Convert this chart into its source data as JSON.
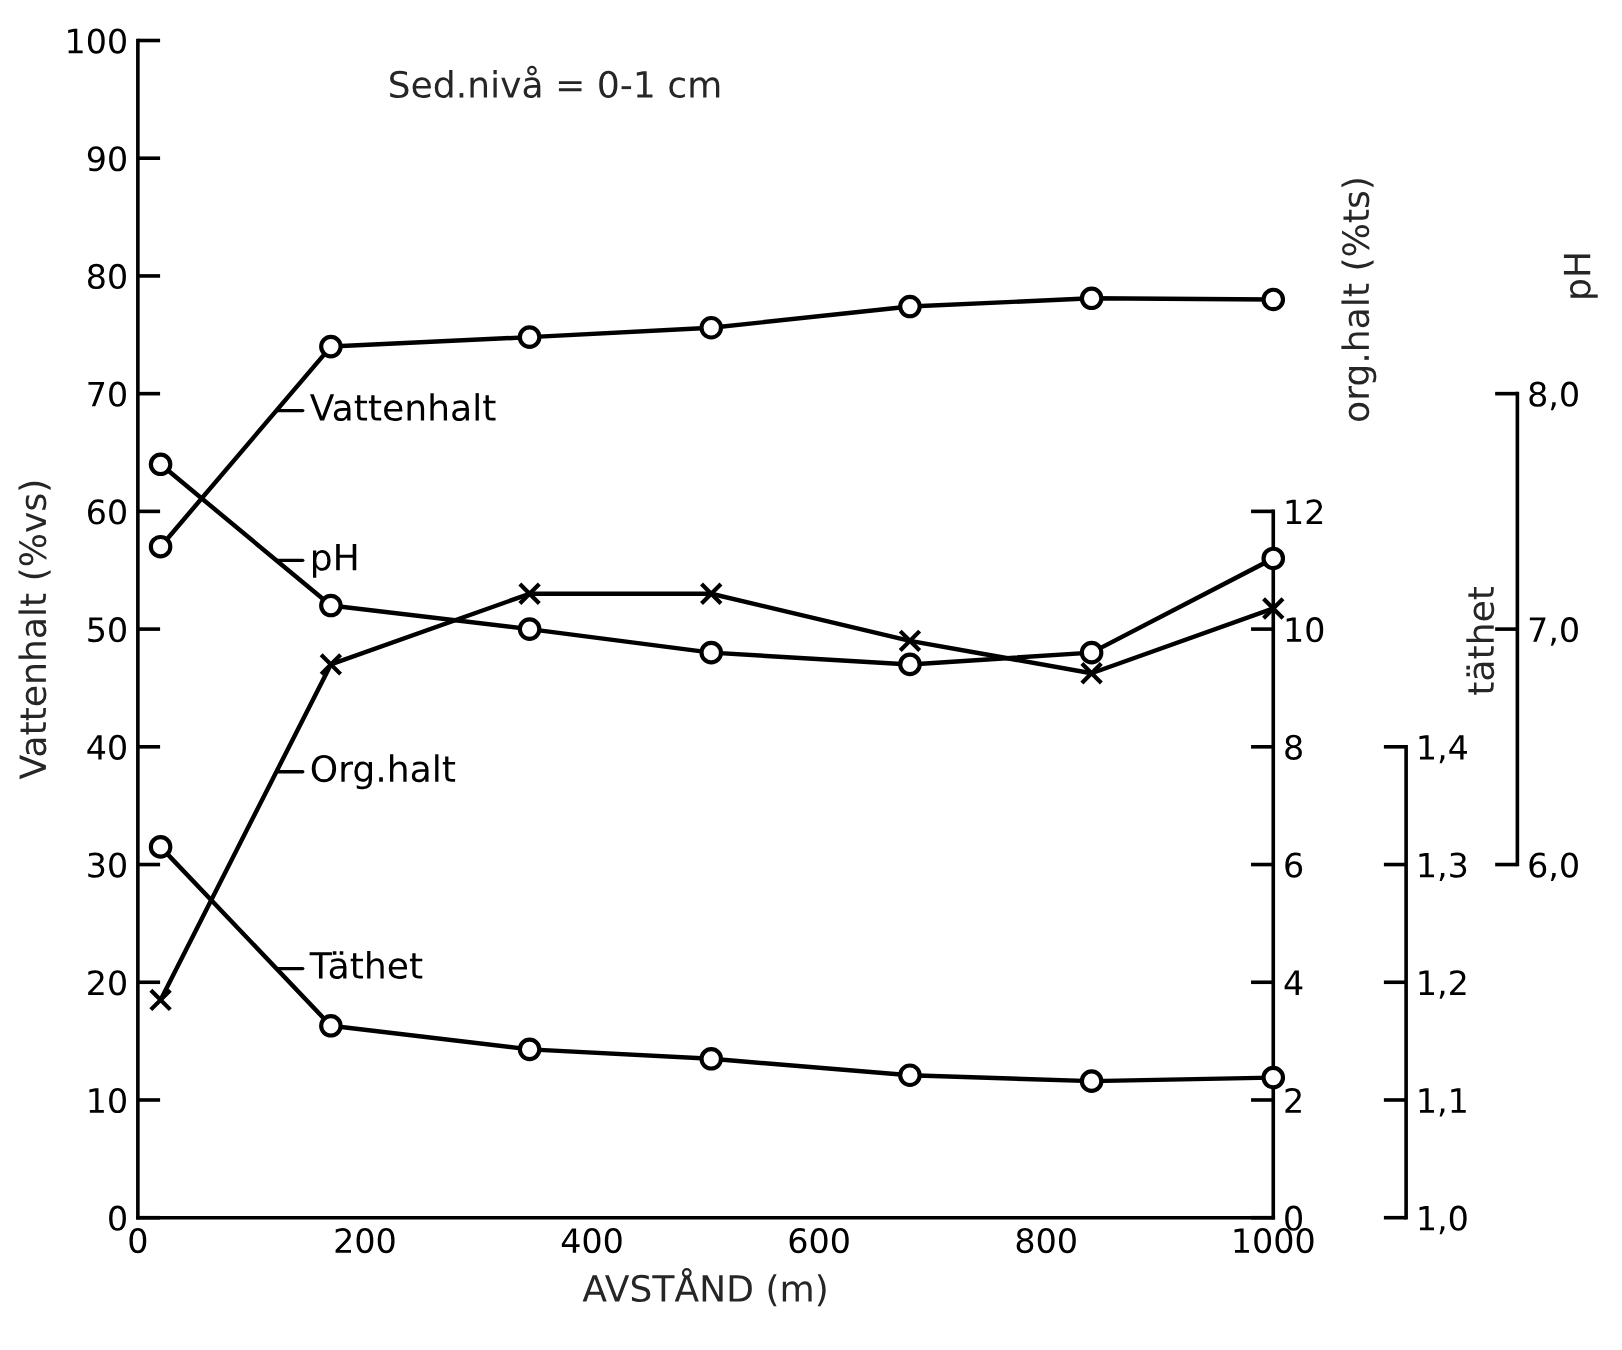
{
  "chart_data": [
    {
      "type": "line",
      "title": "Sed.nivå = 0-1 cm",
      "xlabel": "AVSTÅND (m)",
      "ylabel": "Vattenhalt (%vs)",
      "y2label": "org.halt (%ts)",
      "y3label": "täthet",
      "x": [
        20,
        170,
        345,
        505,
        680,
        840,
        1000
      ],
      "xlim": [
        0,
        1000
      ],
      "xticks": [
        0,
        200,
        400,
        600,
        800,
        1000
      ],
      "ylim": [
        0,
        100
      ],
      "yticks": [
        0,
        10,
        20,
        30,
        40,
        50,
        60,
        70,
        80,
        90,
        100
      ],
      "y2lim": [
        0,
        20
      ],
      "y2ticks": [
        0,
        2,
        4,
        6,
        8,
        10,
        12
      ],
      "y3lim": [
        1.0,
        2.0
      ],
      "y3ticks": [
        {
          "value": 1.0,
          "label": "1,0"
        },
        {
          "value": 1.1,
          "label": "1,1"
        },
        {
          "value": 1.2,
          "label": "1,2"
        },
        {
          "value": 1.3,
          "label": "1,3"
        },
        {
          "value": 1.4,
          "label": "1,4"
        }
      ],
      "grid": false,
      "legend": "left",
      "line_style": "solid",
      "series": [
        {
          "name": "Vattenhalt",
          "color": "#000000",
          "marker": "circle",
          "axis": "y",
          "values": [
            57,
            74,
            74.8,
            75.6,
            77.4,
            78.1,
            78
          ]
        },
        {
          "name": "Org.halt",
          "color": "#000000",
          "marker": "cross",
          "axis": "y2",
          "values": [
            3.7,
            9.4,
            10.6,
            10.6,
            9.8,
            9.25,
            10.35
          ]
        },
        {
          "name": "Täthet",
          "color": "#000000",
          "marker": "circle",
          "axis": "y3",
          "values": [
            1.315,
            1.163,
            1.143,
            1.135,
            1.121,
            1.116,
            1.119
          ]
        }
      ]
    },
    {
      "type": "line",
      "ylabel": "pH",
      "tick_labels": "y",
      "x": [
        20,
        170,
        345,
        505,
        680,
        840,
        1000
      ],
      "xlim": [
        0,
        1000
      ],
      "ylim": [
        4.5,
        9.5
      ],
      "yticks": [
        {
          "value": 6.0,
          "label": "6,0"
        },
        {
          "value": 7.0,
          "label": "7,0"
        },
        {
          "value": 8.0,
          "label": "8,0"
        }
      ],
      "grid": false,
      "legend": "left",
      "line_style": "solid",
      "series": [
        {
          "name": "pH",
          "color": "#000000",
          "marker": "circle",
          "values": [
            7.7,
            7.1,
            7.0,
            6.9,
            6.85,
            6.9,
            7.3
          ]
        }
      ]
    }
  ]
}
